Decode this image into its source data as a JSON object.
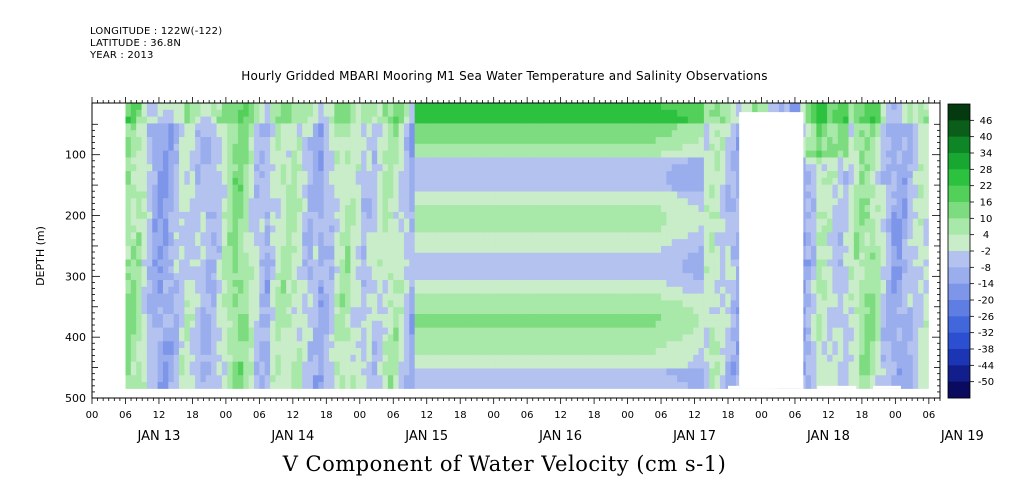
{
  "header": {
    "longitude": "LONGITUDE : 122W(-122)",
    "latitude": "LATITUDE : 36.8N",
    "year": "YEAR : 2013"
  },
  "chart_data": {
    "type": "heatmap",
    "title": "Hourly Gridded MBARI Mooring M1 Sea Water Temperature and Salinity Observations",
    "subtitle": "V Component of Water Velocity (cm s-1)",
    "xlabel": "",
    "ylabel": "DEPTH (m)",
    "x_range": [
      "2013-01-13T00:00",
      "2013-01-19T08:00"
    ],
    "data_extent_x": [
      "2013-01-13T06:00",
      "2013-01-19T06:00"
    ],
    "ylim": [
      500,
      15
    ],
    "y_inverted": true,
    "y_ticks": [
      100,
      200,
      300,
      400,
      500
    ],
    "x_hour_ticks": [
      "00",
      "06",
      "12",
      "18",
      "00",
      "06",
      "12",
      "18",
      "00",
      "06",
      "12",
      "18",
      "00",
      "06",
      "12",
      "18",
      "00",
      "06",
      "12",
      "18",
      "00",
      "06",
      "12",
      "18",
      "00",
      "06"
    ],
    "x_day_labels": [
      "JAN 13",
      "JAN 14",
      "JAN 15",
      "JAN 16",
      "JAN 17",
      "JAN 18",
      "JAN 19"
    ],
    "colorbar": {
      "levels": [
        -50,
        -44,
        -38,
        -32,
        -26,
        -20,
        -14,
        -8,
        -2,
        4,
        10,
        16,
        22,
        28,
        34,
        40,
        46
      ],
      "tick_labels": [
        "46",
        "40",
        "34",
        "28",
        "22",
        "16",
        "10",
        "4",
        "-2",
        "-8",
        "-14",
        "-20",
        "-26",
        "-32",
        "-38",
        "-44",
        "-50"
      ],
      "colors_low_to_high": [
        "#0a0a5e",
        "#121e8c",
        "#1c35b4",
        "#2b4fd0",
        "#4266dc",
        "#5e7ee4",
        "#7e96ea",
        "#9aaeee",
        "#b4c2f0",
        "#c9ecc9",
        "#a8e8a8",
        "#7edc80",
        "#52d05a",
        "#2cc240",
        "#18a832",
        "#0e8626",
        "#0a5e1a",
        "#053a10"
      ]
    },
    "missing_regions": [
      {
        "x": [
          "2013-01-17T20:00",
          "2013-01-18T07:30"
        ],
        "depth": [
          30,
          500
        ]
      },
      {
        "x": [
          "2013-01-17T18:00",
          "2013-01-17T20:00"
        ],
        "depth": [
          480,
          500
        ]
      },
      {
        "x": [
          "2013-01-18T10:00",
          "2013-01-18T17:00"
        ],
        "depth": [
          480,
          500
        ]
      },
      {
        "x": [
          "2013-01-18T20:00",
          "2013-01-19T01:00"
        ],
        "depth": [
          480,
          500
        ]
      }
    ]
  }
}
